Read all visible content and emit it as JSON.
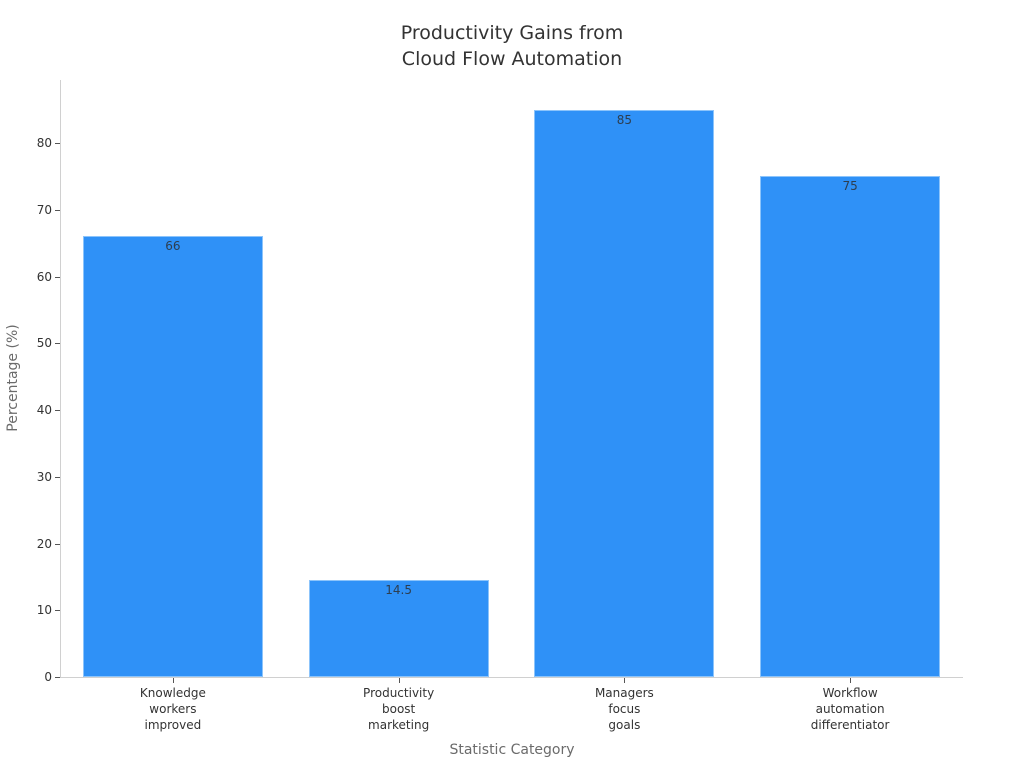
{
  "chart_data": {
    "type": "bar",
    "title": "Productivity Gains from Cloud Flow Automation",
    "title_lines": [
      "Productivity Gains from",
      "Cloud Flow Automation"
    ],
    "xlabel": "Statistic Category",
    "ylabel": "Percentage (%)",
    "categories": [
      "Knowledge workers improved",
      "Productivity boost marketing",
      "Managers focus goals",
      "Workflow automation differentiator"
    ],
    "category_lines": [
      [
        "Knowledge",
        "workers",
        "improved"
      ],
      [
        "Productivity",
        "boost",
        "marketing"
      ],
      [
        "Managers",
        "focus",
        "goals"
      ],
      [
        "Workflow",
        "automation",
        "differentiator"
      ]
    ],
    "values": [
      66,
      14.5,
      85,
      75
    ],
    "value_labels": [
      "66",
      "14.5",
      "85",
      "75"
    ],
    "yticks": [
      "0",
      "10",
      "20",
      "30",
      "40",
      "50",
      "60",
      "70",
      "80"
    ],
    "ylim": [
      0,
      89.5
    ],
    "grid": false,
    "legend": null,
    "bar_color": "#2f91f7"
  }
}
